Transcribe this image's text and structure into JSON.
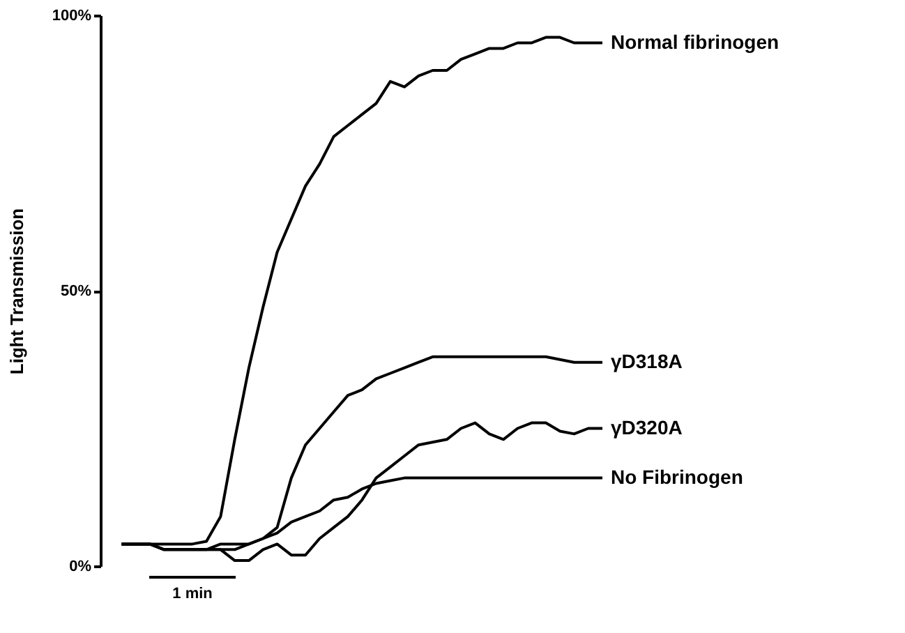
{
  "chart_data": {
    "type": "line",
    "ylabel": "Light Transmission",
    "ylim": [
      0,
      100
    ],
    "yticks": [
      {
        "value": 0,
        "label": "0%"
      },
      {
        "value": 50,
        "label": "50%"
      },
      {
        "value": 100,
        "label": "100%"
      }
    ],
    "grid": false,
    "legend": false,
    "tick_labels": "y",
    "marker": "none",
    "line_style": "solid",
    "categories": [
      null,
      null,
      null,
      null,
      null,
      null,
      null,
      null,
      null,
      null,
      null,
      null,
      null,
      null,
      null,
      null,
      null,
      null,
      null,
      null,
      null,
      null,
      null,
      null,
      null,
      null,
      null,
      null,
      null,
      null,
      null,
      null,
      null,
      null,
      null
    ],
    "series": [
      {
        "name": "Normal fibrinogen",
        "color": "#000000",
        "values": [
          4,
          4,
          4,
          4,
          4,
          4,
          4.5,
          9,
          23,
          36,
          47,
          57,
          63,
          69,
          73,
          78,
          80,
          82,
          84,
          88,
          87,
          89,
          90,
          90,
          92,
          93,
          94,
          94,
          95,
          95,
          96,
          96,
          95,
          95,
          95
        ]
      },
      {
        "name": "γD318A",
        "color": "#000000",
        "values": [
          4,
          4,
          4,
          3,
          3,
          3,
          3,
          4,
          4,
          4,
          5,
          7,
          16,
          22,
          25,
          28,
          31,
          32,
          34,
          35,
          36,
          37,
          38,
          38,
          38,
          38,
          38,
          38,
          38,
          38,
          38,
          37.5,
          37,
          37,
          37
        ]
      },
      {
        "name": "γD320A",
        "color": "#000000",
        "values": [
          4,
          4,
          4,
          3,
          3,
          3,
          3,
          3,
          1,
          1,
          3,
          4,
          2,
          2,
          5,
          7,
          9,
          12,
          16,
          18,
          20,
          22,
          22.5,
          23,
          25,
          26,
          24,
          23,
          25,
          26,
          26,
          24.5,
          24,
          25,
          25
        ]
      },
      {
        "name": "No Fibrinogen",
        "color": "#000000",
        "values": [
          4,
          4,
          4,
          3,
          3,
          3,
          3,
          3,
          3,
          4,
          5,
          6,
          8,
          9,
          10,
          12,
          12.5,
          14,
          15,
          15.5,
          16,
          16,
          16,
          16,
          16,
          16,
          16,
          16,
          16,
          16,
          16,
          16,
          16,
          16,
          16
        ]
      }
    ],
    "annotations": [
      "1 min"
    ]
  }
}
